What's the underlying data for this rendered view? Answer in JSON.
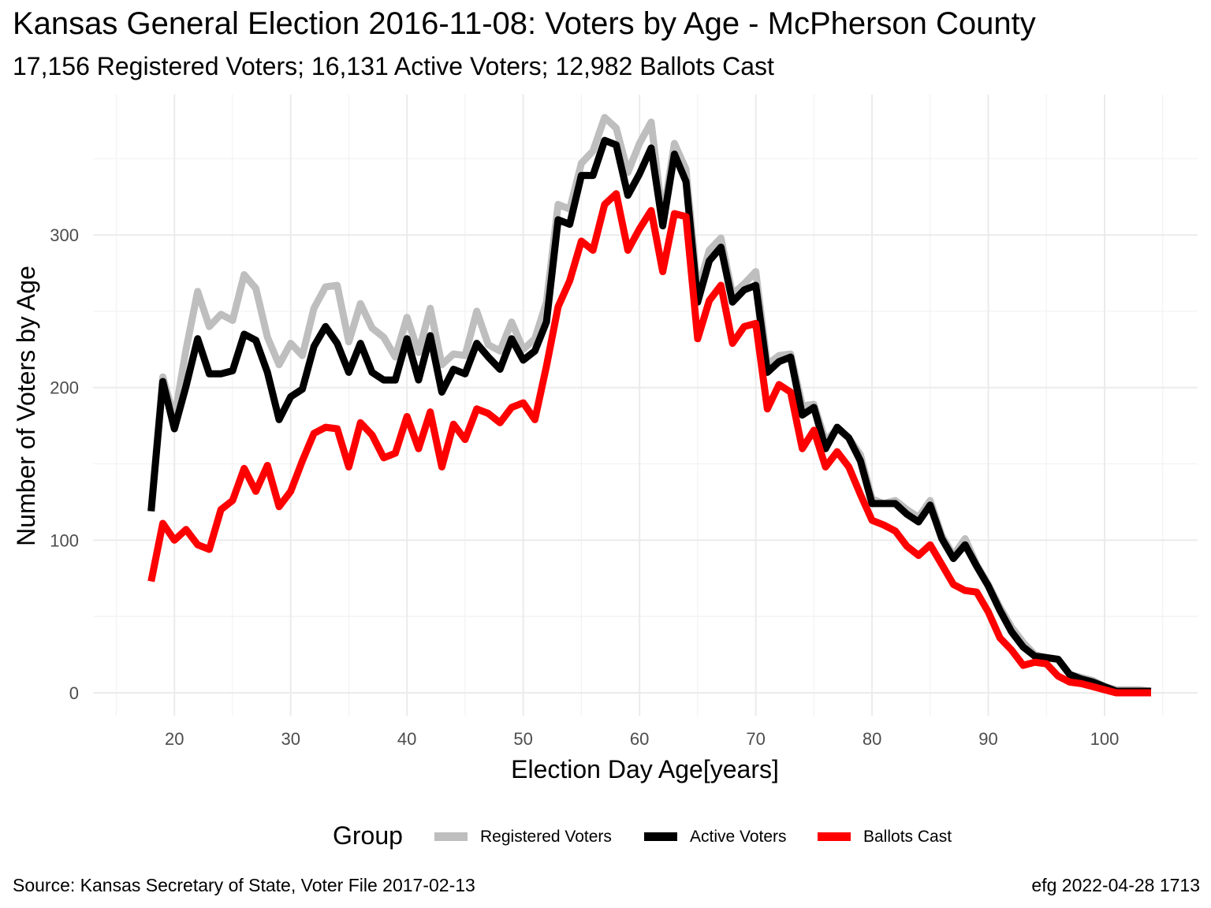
{
  "title": "Kansas General Election 2016-11-08:  Voters by Age - McPherson County",
  "subtitle": "17,156 Registered Voters; 16,131 Active Voters; 12,982 Ballots Cast",
  "source": "Source:  Kansas Secretary of State, Voter File  2017-02-13",
  "stamp": "efg 2022-04-28 1713",
  "chart_data": {
    "type": "line",
    "xlabel": "Election Day Age[years]",
    "ylabel": "Number of Voters by Age",
    "xlim": [
      13,
      108
    ],
    "ylim": [
      -15,
      392
    ],
    "xticks": [
      20,
      30,
      40,
      50,
      60,
      70,
      80,
      90,
      100
    ],
    "yticks": [
      0,
      100,
      200,
      300
    ],
    "grid": true,
    "legend_title": "Group",
    "legend_position": "bottom",
    "x": [
      18,
      19,
      20,
      21,
      22,
      23,
      24,
      25,
      26,
      27,
      28,
      29,
      30,
      31,
      32,
      33,
      34,
      35,
      36,
      37,
      38,
      39,
      40,
      41,
      42,
      43,
      44,
      45,
      46,
      47,
      48,
      49,
      50,
      51,
      52,
      53,
      54,
      55,
      56,
      57,
      58,
      59,
      60,
      61,
      62,
      63,
      64,
      65,
      66,
      67,
      68,
      69,
      70,
      71,
      72,
      73,
      74,
      75,
      76,
      77,
      78,
      79,
      80,
      81,
      82,
      83,
      84,
      85,
      86,
      87,
      88,
      89,
      90,
      91,
      92,
      93,
      94,
      95,
      96,
      97,
      98,
      99,
      100,
      101,
      102,
      103,
      104
    ],
    "series": [
      {
        "name": "Registered Voters",
        "color": "#bebebe",
        "values": [
          120,
          207,
          180,
          225,
          263,
          240,
          248,
          244,
          274,
          265,
          233,
          215,
          229,
          221,
          252,
          266,
          267,
          230,
          255,
          239,
          233,
          220,
          246,
          223,
          252,
          215,
          222,
          221,
          250,
          228,
          224,
          243,
          225,
          232,
          256,
          320,
          317,
          347,
          355,
          377,
          370,
          341,
          360,
          374,
          311,
          360,
          343,
          263,
          290,
          298,
          261,
          268,
          276,
          215,
          221,
          222,
          188,
          189,
          165,
          173,
          167,
          156,
          127,
          124,
          126,
          120,
          115,
          126,
          103,
          90,
          101,
          84,
          71,
          56,
          43,
          33,
          25,
          23,
          22,
          12,
          10,
          8,
          4,
          2,
          2,
          2,
          1
        ]
      },
      {
        "name": "Active Voters",
        "color": "#000000",
        "values": [
          119,
          204,
          173,
          201,
          232,
          209,
          209,
          211,
          235,
          231,
          210,
          179,
          194,
          199,
          227,
          240,
          229,
          210,
          229,
          210,
          205,
          205,
          232,
          205,
          234,
          197,
          212,
          209,
          229,
          220,
          212,
          232,
          218,
          224,
          243,
          310,
          307,
          339,
          339,
          362,
          359,
          326,
          340,
          357,
          306,
          353,
          335,
          256,
          283,
          292,
          256,
          264,
          267,
          210,
          217,
          220,
          182,
          187,
          160,
          174,
          167,
          152,
          124,
          124,
          124,
          117,
          112,
          123,
          101,
          88,
          97,
          83,
          70,
          54,
          40,
          30,
          24,
          23,
          22,
          12,
          9,
          7,
          4,
          1,
          1,
          1,
          1
        ]
      },
      {
        "name": "Ballots Cast",
        "color": "#ff0000",
        "values": [
          73,
          111,
          100,
          107,
          97,
          94,
          120,
          126,
          147,
          132,
          149,
          122,
          132,
          152,
          170,
          174,
          173,
          148,
          177,
          169,
          154,
          157,
          181,
          160,
          184,
          148,
          176,
          166,
          186,
          183,
          177,
          187,
          190,
          179,
          214,
          253,
          270,
          296,
          290,
          320,
          327,
          290,
          304,
          316,
          276,
          314,
          312,
          232,
          257,
          267,
          229,
          240,
          242,
          186,
          202,
          197,
          160,
          172,
          148,
          158,
          148,
          130,
          113,
          110,
          106,
          96,
          90,
          97,
          84,
          71,
          67,
          66,
          53,
          36,
          28,
          18,
          20,
          19,
          11,
          7,
          6,
          4,
          2,
          0,
          0,
          0,
          0
        ]
      }
    ]
  }
}
